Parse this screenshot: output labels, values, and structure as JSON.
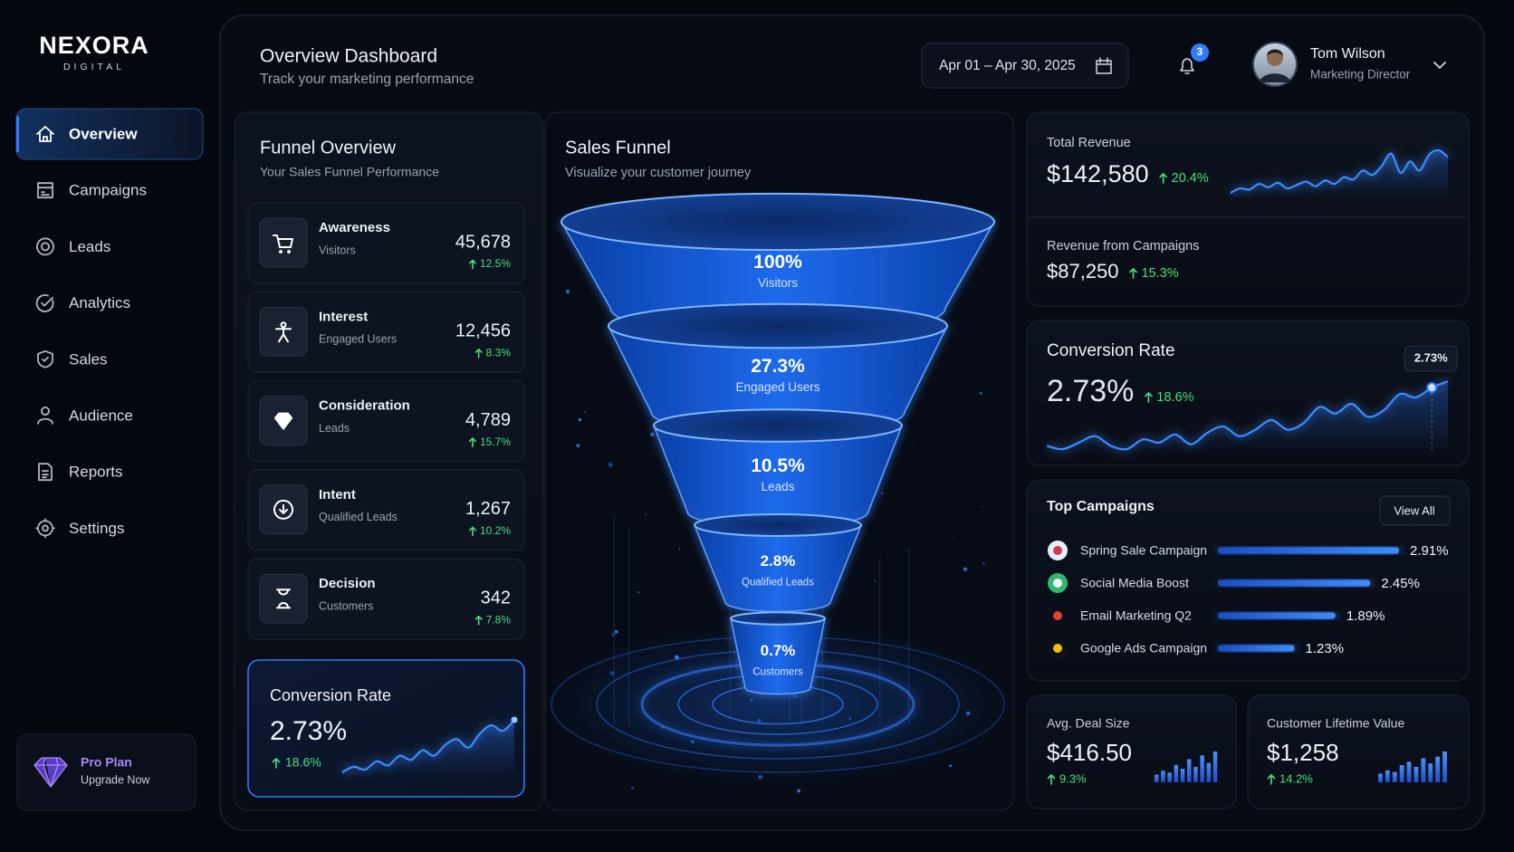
{
  "brand": {
    "name": "NEXORA",
    "tagline": "DIGITAL"
  },
  "nav": [
    {
      "label": "Overview",
      "active": true
    },
    {
      "label": "Campaigns"
    },
    {
      "label": "Leads"
    },
    {
      "label": "Analytics"
    },
    {
      "label": "Sales"
    },
    {
      "label": "Audience"
    },
    {
      "label": "Reports"
    },
    {
      "label": "Settings"
    }
  ],
  "plan": {
    "title": "Pro Plan",
    "action": "Upgrade Now"
  },
  "header": {
    "title": "Overview Dashboard",
    "subtitle": "Track your marketing performance",
    "date_range": "Apr 01 – Apr 30, 2025",
    "notifications": "3",
    "user": {
      "name": "Tom Wilson",
      "role": "Marketing Director"
    }
  },
  "funnel_overview": {
    "title": "Funnel Overview",
    "subtitle": "Your Sales Funnel Performance",
    "stages": [
      {
        "name": "Awareness",
        "sub": "Visitors",
        "value": "45,678",
        "change": "12.5%"
      },
      {
        "name": "Interest",
        "sub": "Engaged Users",
        "value": "12,456",
        "change": "8.3%"
      },
      {
        "name": "Consideration",
        "sub": "Leads",
        "value": "4,789",
        "change": "15.7%"
      },
      {
        "name": "Intent",
        "sub": "Qualified Leads",
        "value": "1,267",
        "change": "10.2%"
      },
      {
        "name": "Decision",
        "sub": "Customers",
        "value": "342",
        "change": "7.8%"
      }
    ],
    "conversion": {
      "title": "Conversion Rate",
      "value": "2.73%",
      "change": "18.6%",
      "trend": [
        10,
        14,
        12,
        18,
        15,
        22,
        19,
        26,
        22,
        30,
        34,
        28,
        38,
        44,
        40,
        48
      ]
    }
  },
  "sales_funnel": {
    "title": "Sales Funnel",
    "subtitle": "Visualize your customer journey",
    "levels": [
      {
        "percent": "100%",
        "label": "Visitors"
      },
      {
        "percent": "27.3%",
        "label": "Engaged Users"
      },
      {
        "percent": "10.5%",
        "label": "Leads"
      },
      {
        "percent": "2.8%",
        "label": "Qualified Leads"
      },
      {
        "percent": "0.7%",
        "label": "Customers"
      }
    ]
  },
  "metrics": {
    "total_revenue": {
      "label": "Total Revenue",
      "value": "$142,580",
      "change": "20.4%",
      "trend": [
        10,
        14,
        13,
        18,
        15,
        19,
        14,
        17,
        20,
        16,
        21,
        18,
        24,
        22,
        30,
        26,
        34,
        45,
        28,
        38,
        30,
        44,
        48,
        42
      ]
    },
    "campaign_revenue": {
      "label": "Revenue from Campaigns",
      "value": "$87,250",
      "change": "15.3%"
    },
    "conversion_rate": {
      "label": "Conversion Rate",
      "value": "2.73%",
      "change": "18.6%",
      "marker": "2.73%",
      "trend": [
        20,
        18,
        22,
        26,
        20,
        18,
        24,
        22,
        27,
        21,
        28,
        32,
        26,
        30,
        36,
        30,
        34,
        44,
        40,
        46,
        38,
        42,
        52,
        50,
        56,
        60
      ]
    },
    "avg_deal": {
      "label": "Avg. Deal Size",
      "value": "$416.50",
      "change": "9.3%",
      "bars": [
        4,
        6,
        5,
        9,
        7,
        12,
        8,
        14,
        10,
        16
      ]
    },
    "clv": {
      "label": "Customer Lifetime Value",
      "value": "$1,258",
      "change": "14.2%",
      "bars": [
        5,
        7,
        6,
        10,
        12,
        9,
        14,
        11,
        15,
        18
      ]
    }
  },
  "top_campaigns": {
    "title": "Top Campaigns",
    "action": "View All",
    "items": [
      {
        "name": "Spring Sale Campaign",
        "value": 2.91,
        "label": "2.91%"
      },
      {
        "name": "Social Media Boost",
        "value": 2.45,
        "label": "2.45%"
      },
      {
        "name": "Email Marketing Q2",
        "value": 1.89,
        "label": "1.89%"
      },
      {
        "name": "Google Ads Campaign",
        "value": 1.23,
        "label": "1.23%"
      }
    ]
  }
}
